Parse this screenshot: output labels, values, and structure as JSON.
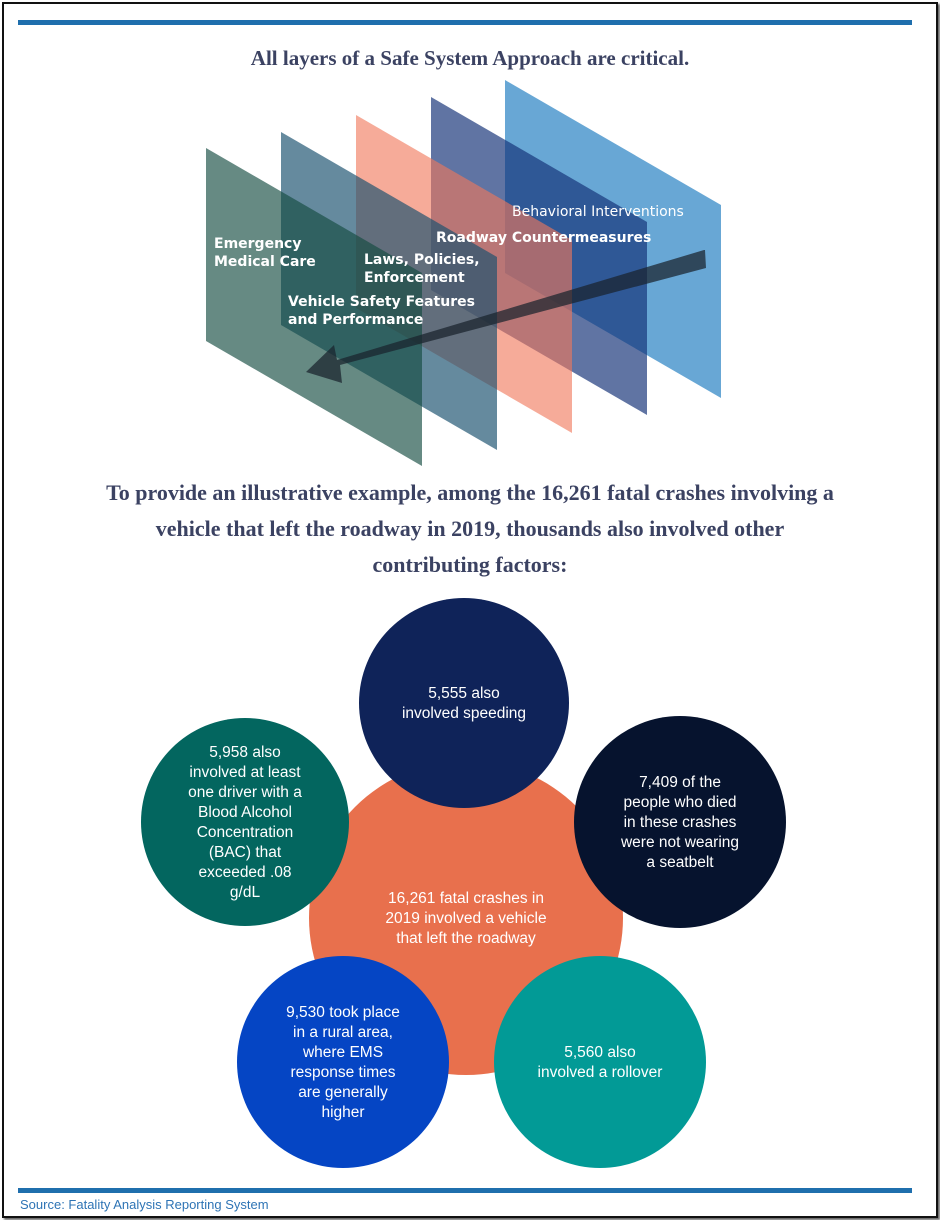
{
  "title": "All layers of a Safe System Approach are critical.",
  "layers": [
    {
      "label_lines": [
        "Behavioral Interventions"
      ],
      "color": "#6aabd2"
    },
    {
      "label_lines": [
        "Roadway Countermeasures"
      ],
      "color": "#2c4a82"
    },
    {
      "label_lines": [
        "Laws, Policies,",
        "Enforcement"
      ],
      "color": "#f4a893"
    },
    {
      "label_lines": [
        "Vehicle Safety Features",
        "and Performance"
      ],
      "color": "#678aa0"
    },
    {
      "label_lines": [
        "Emergency Medical Care"
      ],
      "color": "#668882"
    }
  ],
  "intro_lines": [
    "To provide an illustrative example, among the 16,261 fatal crashes involving a",
    "vehicle that left the roadway in 2019, thousands also involved other",
    "contributing factors:"
  ],
  "center": {
    "lines": [
      "16,261 fatal crashes in",
      "2019 involved a vehicle",
      "that left the roadway"
    ],
    "color": "#e8704d"
  },
  "factors": [
    {
      "id": "speeding",
      "lines": [
        "5,555 also",
        "involved speeding"
      ],
      "color": "#0f2359"
    },
    {
      "id": "seatbelt",
      "lines": [
        "7,409 of the",
        "people who died",
        "in these crashes",
        "were not wearing",
        "a seatbelt"
      ],
      "color": "#06132e"
    },
    {
      "id": "rollover",
      "lines": [
        "5,560 also",
        "involved a rollover"
      ],
      "color": "#029a96"
    },
    {
      "id": "rural",
      "lines": [
        "9,530 took place",
        "in a rural area,",
        "where EMS",
        "response times",
        "are generally",
        "higher"
      ],
      "color": "#0545c4"
    },
    {
      "id": "alcohol",
      "lines": [
        "5,958 also",
        "involved at least",
        "one driver with a",
        "Blood Alcohol",
        "Concentration",
        "(BAC) that",
        "exceeded .08",
        "g/dL"
      ],
      "color": "#03665f"
    }
  ],
  "source": "Source: Fatality Analysis Reporting System",
  "accent": "#1f6fad"
}
